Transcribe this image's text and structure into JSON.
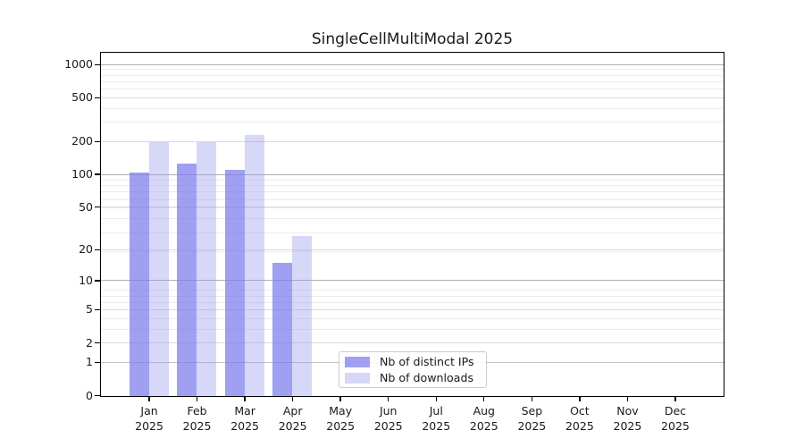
{
  "chart_data": {
    "type": "bar",
    "title": "SingleCellMultiModal 2025",
    "months": [
      "Jan",
      "Feb",
      "Mar",
      "Apr",
      "May",
      "Jun",
      "Jul",
      "Aug",
      "Sep",
      "Oct",
      "Nov",
      "Dec"
    ],
    "year": "2025",
    "series": [
      {
        "name": "Nb of distinct IPs",
        "color": "rgba(124,124,238,0.72)",
        "values": [
          106,
          128,
          112,
          15,
          0,
          0,
          0,
          0,
          0,
          0,
          0,
          0
        ]
      },
      {
        "name": "Nb of downloads",
        "color": "rgba(150,150,235,0.38)",
        "values": [
          200,
          200,
          230,
          27,
          0,
          0,
          0,
          0,
          0,
          0,
          0,
          0
        ]
      }
    ],
    "yticks": [
      0,
      1,
      2,
      5,
      10,
      20,
      50,
      100,
      200,
      500,
      1000
    ],
    "y_scale": "log10(1+x)",
    "ylim": [
      0,
      1343
    ],
    "xlabel": "",
    "ylabel": "",
    "grid": "horizontal",
    "legend_position": "lower-center",
    "colors": {
      "axis": "#000000",
      "text": "#1a1a1a",
      "major_grid": "#b0b0b0",
      "mid_grid": "#dadada",
      "minor_grid": "#ececec"
    }
  }
}
